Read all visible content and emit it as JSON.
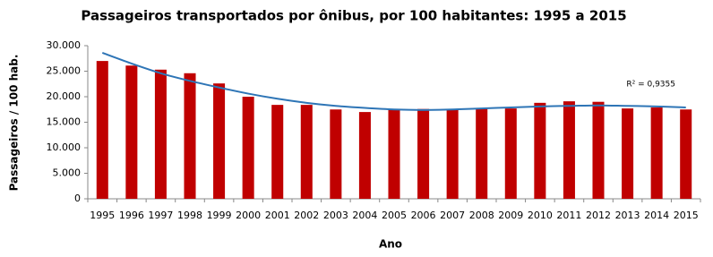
{
  "chart_data": {
    "type": "bar",
    "title": "Passageiros transportados por ônibus, por 100 habitantes: 1995 a 2015",
    "x_label": "Ano",
    "y_label": "Passageiros / 100 hab.",
    "categories": [
      "1995",
      "1996",
      "1997",
      "1998",
      "1999",
      "2000",
      "2001",
      "2002",
      "2003",
      "2004",
      "2005",
      "2006",
      "2007",
      "2008",
      "2009",
      "2010",
      "2011",
      "2012",
      "2013",
      "2014",
      "2015"
    ],
    "values": [
      27000,
      26100,
      25300,
      24600,
      22600,
      20000,
      18400,
      18400,
      17500,
      17000,
      17400,
      17600,
      17600,
      17600,
      17700,
      18800,
      19100,
      19000,
      17700,
      17900,
      17500
    ],
    "color": "#c00000",
    "trendline": {
      "color": "#2e75b6",
      "label": "R² = 0,9355",
      "values": [
        28600,
        26500,
        24600,
        23100,
        21800,
        20600,
        19600,
        18800,
        18200,
        17800,
        17500,
        17400,
        17500,
        17700,
        17900,
        18100,
        18200,
        18300,
        18200,
        18100,
        17900
      ]
    },
    "ylim": [
      0,
      30000
    ],
    "yticks": [
      0,
      {
        "value": 5000,
        "label": "5.000"
      },
      {
        "value": 10000,
        "label": "10.000"
      },
      {
        "value": 15000,
        "label": "15.000"
      },
      {
        "value": 20000,
        "label": "20.000"
      },
      {
        "value": 25000,
        "label": "25.000"
      },
      {
        "value": 30000,
        "label": "30.000"
      }
    ],
    "grid": false
  }
}
